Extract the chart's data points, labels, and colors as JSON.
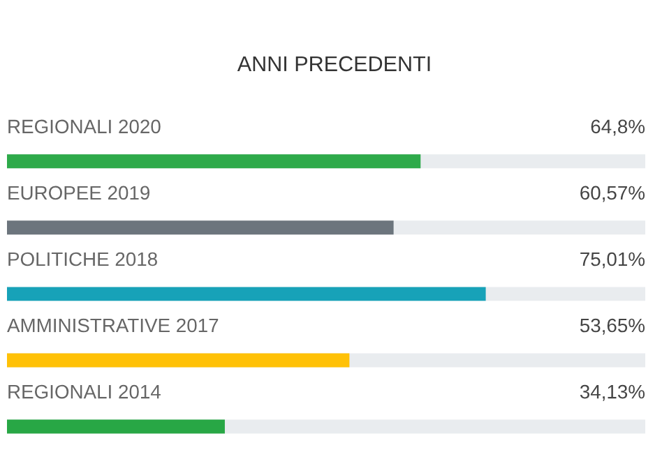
{
  "chart_data": {
    "type": "bar",
    "orientation": "horizontal",
    "title": "ANNI PRECEDENTI",
    "categories": [
      "REGIONALI 2020",
      "EUROPEE 2019",
      "POLITICHE 2018",
      "AMMINISTRATIVE 2017",
      "REGIONALI 2014"
    ],
    "values": [
      64.8,
      60.57,
      75.01,
      53.65,
      34.13
    ],
    "colors": [
      "#2eaa4a",
      "#6c757d",
      "#17a2b8",
      "#ffc107",
      "#28a745"
    ],
    "value_labels": [
      "64,8%",
      "60,57%",
      "75,01%",
      "53,65%",
      "34,13%"
    ],
    "xlim": [
      0,
      100
    ]
  }
}
